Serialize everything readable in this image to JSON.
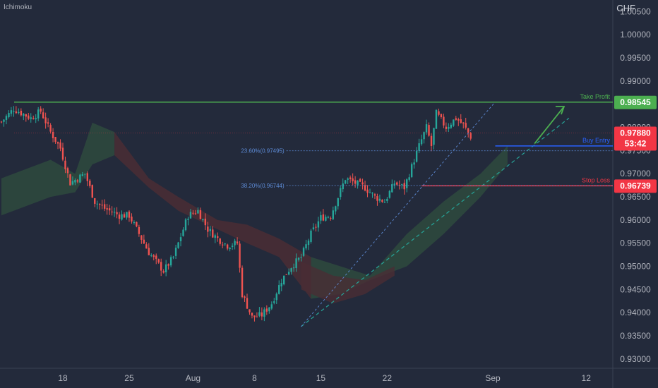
{
  "indicator_label": "Ichimoku",
  "currency": "CHF",
  "colors": {
    "background": "#232a3b",
    "up": "#26a69a",
    "down": "#ef5350",
    "take_profit": "#4caf50",
    "stop_loss": "#f23645",
    "buy_entry": "#2962ff",
    "fib": "#5d8bd6",
    "cloud_bull": "#2e4a3e",
    "cloud_bear": "#4a2d35",
    "axis_text": "#b2b5be"
  },
  "chart_data": {
    "type": "candlestick",
    "title": "",
    "ylim": [
      0.928,
      1.0075
    ],
    "y_ticks": [
      "1.00500",
      "1.00000",
      "0.99500",
      "0.99000",
      "0.98500",
      "0.98000",
      "0.97500",
      "0.97000",
      "0.96500",
      "0.96000",
      "0.95500",
      "0.95000",
      "0.94500",
      "0.94000",
      "0.93500",
      "0.93000"
    ],
    "x_ticks": [
      "18",
      "25",
      "Aug",
      "8",
      "15",
      "22",
      "Sep",
      "12"
    ],
    "levels": [
      {
        "name": "Take Profit",
        "value": 0.98545,
        "badge": "0.98545"
      },
      {
        "name": "Buy Entry",
        "value": 0.976
      },
      {
        "name": "Stop Loss",
        "value": 0.96739,
        "badge": "0.96739"
      }
    ],
    "fib_levels": [
      {
        "label": "23.60%(0.97495)",
        "value": 0.97495
      },
      {
        "label": "38.20%(0.96744)",
        "value": 0.96744
      }
    ],
    "current_price": {
      "value": "0.97880",
      "timer": "53:42"
    },
    "close_path": [
      [
        0,
        0.9812
      ],
      [
        5,
        0.984
      ],
      [
        12,
        0.982
      ],
      [
        16,
        0.9835
      ],
      [
        20,
        0.979
      ],
      [
        24,
        0.9755
      ],
      [
        28,
        0.968
      ],
      [
        34,
        0.97
      ],
      [
        38,
        0.964
      ],
      [
        42,
        0.9625
      ],
      [
        48,
        0.961
      ],
      [
        52,
        0.961
      ],
      [
        56,
        0.957
      ],
      [
        60,
        0.953
      ],
      [
        66,
        0.949
      ],
      [
        70,
        0.952
      ],
      [
        76,
        0.961
      ],
      [
        80,
        0.962
      ],
      [
        84,
        0.958
      ],
      [
        88,
        0.956
      ],
      [
        92,
        0.9545
      ],
      [
        96,
        0.955
      ],
      [
        98,
        0.944
      ],
      [
        102,
        0.939
      ],
      [
        106,
        0.9395
      ],
      [
        110,
        0.942
      ],
      [
        114,
        0.947
      ],
      [
        118,
        0.95
      ],
      [
        122,
        0.952
      ],
      [
        126,
        0.957
      ],
      [
        130,
        0.9605
      ],
      [
        134,
        0.961
      ],
      [
        137,
        0.965
      ],
      [
        140,
        0.969
      ],
      [
        144,
        0.968
      ],
      [
        148,
        0.967
      ],
      [
        152,
        0.965
      ],
      [
        156,
        0.964
      ],
      [
        160,
        0.968
      ],
      [
        164,
        0.967
      ],
      [
        168,
        0.973
      ],
      [
        170,
        0.976
      ],
      [
        173,
        0.98
      ],
      [
        175,
        0.976
      ],
      [
        177,
        0.983
      ],
      [
        181,
        0.98
      ],
      [
        185,
        0.982
      ],
      [
        188,
        0.9805
      ],
      [
        191,
        0.978
      ]
    ],
    "kumo": {
      "top": [
        [
          0,
          0.969
        ],
        [
          20,
          0.973
        ],
        [
          30,
          0.97
        ],
        [
          37,
          0.981
        ],
        [
          46,
          0.979
        ],
        [
          60,
          0.969
        ],
        [
          72,
          0.965
        ],
        [
          88,
          0.96
        ],
        [
          100,
          0.959
        ],
        [
          113,
          0.956
        ],
        [
          126,
          0.952
        ],
        [
          138,
          0.95
        ],
        [
          150,
          0.948
        ],
        [
          165,
          0.957
        ],
        [
          180,
          0.964
        ],
        [
          195,
          0.97
        ],
        [
          206,
          0.976
        ]
      ],
      "bottom": [
        [
          0,
          0.961
        ],
        [
          20,
          0.965
        ],
        [
          30,
          0.966
        ],
        [
          37,
          0.972
        ],
        [
          46,
          0.974
        ],
        [
          60,
          0.967
        ],
        [
          72,
          0.962
        ],
        [
          88,
          0.958
        ],
        [
          100,
          0.955
        ],
        [
          113,
          0.952
        ],
        [
          126,
          0.943
        ],
        [
          138,
          0.944
        ],
        [
          150,
          0.947
        ],
        [
          165,
          0.95
        ],
        [
          180,
          0.957
        ],
        [
          195,
          0.965
        ],
        [
          206,
          0.972
        ]
      ]
    }
  }
}
